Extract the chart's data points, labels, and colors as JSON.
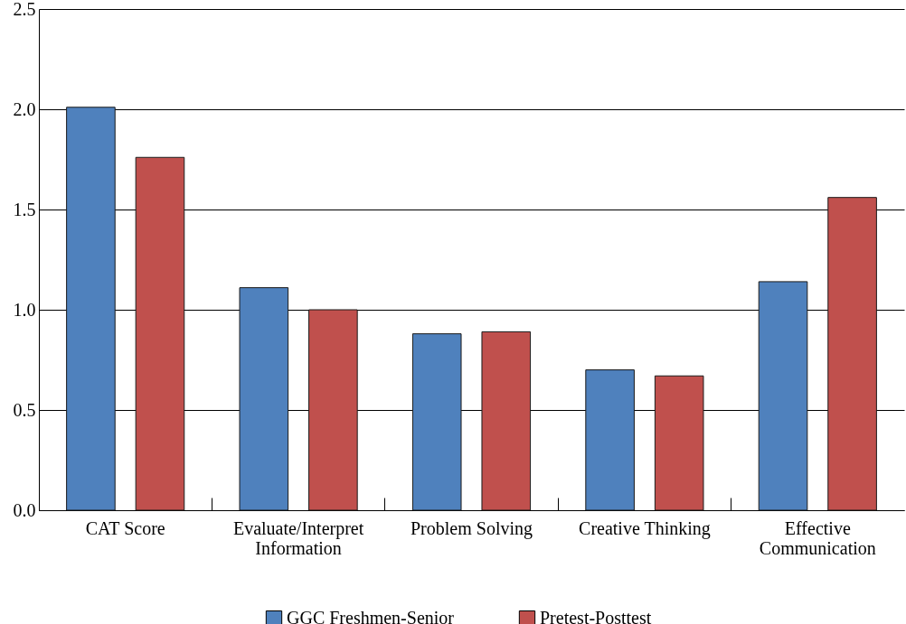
{
  "chart_data": {
    "type": "bar",
    "categories": [
      "CAT Score",
      "Evaluate/Interpret Information",
      "Problem Solving",
      "Creative Thinking",
      "Effective Communication"
    ],
    "series": [
      {
        "name": "GGC Freshmen-Senior",
        "color": "#4f81bd",
        "values": [
          2.01,
          1.11,
          0.88,
          0.7,
          1.14
        ]
      },
      {
        "name": "Pretest-Posttest",
        "color": "#c0504d",
        "values": [
          1.76,
          1.0,
          0.89,
          0.67,
          1.56
        ]
      }
    ],
    "ylim": [
      0,
      2.5
    ],
    "yticks": [
      {
        "value": 0,
        "label": "0.0"
      },
      {
        "value": 0.5,
        "label": "0.5"
      },
      {
        "value": 1,
        "label": "1.0"
      },
      {
        "value": 1.5,
        "label": "1.5"
      },
      {
        "value": 2,
        "label": "2.0"
      },
      {
        "value": 2.5,
        "label": "2.5"
      }
    ],
    "grid": "y",
    "legend": "bottom"
  }
}
